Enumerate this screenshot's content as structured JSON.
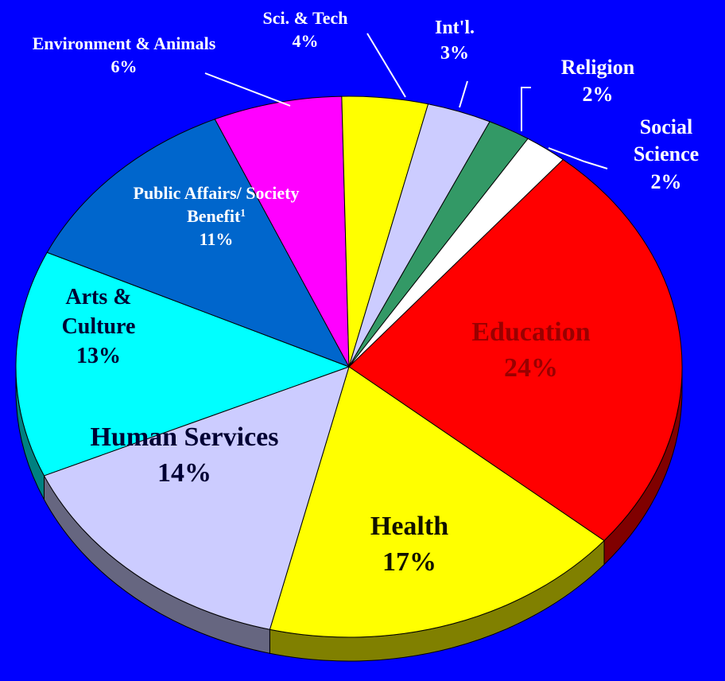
{
  "chart_data": {
    "type": "pie",
    "categories": [
      "Education",
      "Health",
      "Human Services",
      "Arts & Culture",
      "Public Affairs/ Society Benefit",
      "Environment & Animals",
      "Sci. & Tech",
      "Int'l.",
      "Religion",
      "Social Science"
    ],
    "category_superscripts": [
      null,
      null,
      null,
      null,
      "1",
      null,
      null,
      null,
      null,
      null
    ],
    "values": [
      24,
      17,
      14,
      13,
      11,
      6,
      4,
      3,
      2,
      2
    ],
    "value_labels": [
      "24%",
      "17%",
      "14%",
      "13%",
      "11%",
      "6%",
      "4%",
      "3%",
      "2%",
      "2%"
    ],
    "colors": [
      "#ff0000",
      "#ffff00",
      "#ccccff",
      "#00ffff",
      "#0066cc",
      "#ff00ff",
      "#ffff00",
      "#ccccff",
      "#339966",
      "#ffffff"
    ],
    "background": "#0000ff"
  }
}
